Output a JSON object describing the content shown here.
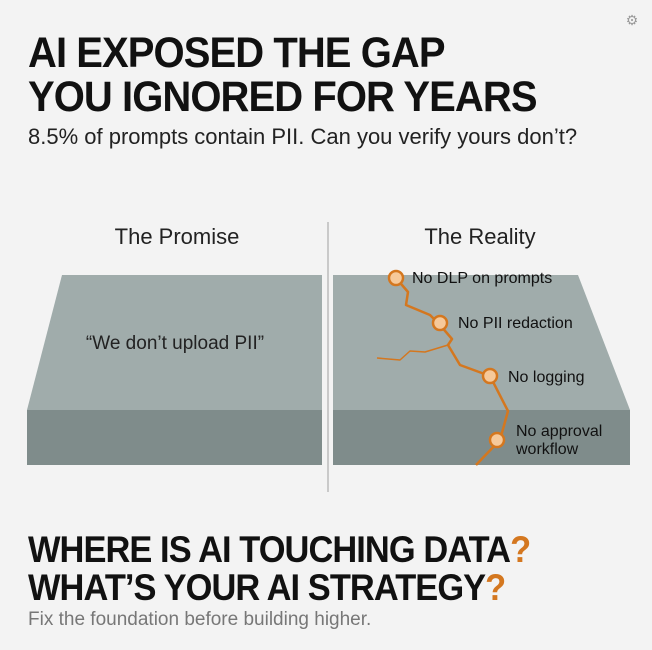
{
  "header": {
    "title_line1": "AI EXPOSED THE GAP",
    "title_line2": "YOU IGNORED FOR YEARS",
    "subtitle": "8.5% of prompts contain PII. Can you verify yours don’t?"
  },
  "promise": {
    "heading": "The Promise",
    "quote": "“We don’t upload PII”"
  },
  "reality": {
    "heading": "The Reality",
    "cracks": [
      "No DLP on prompts",
      "No PII redaction",
      "No logging",
      "No approval",
      "workflow"
    ]
  },
  "footer": {
    "question1": "WHERE IS AI TOUCHING DATA",
    "question2": "WHAT’S YOUR AI STRATEGY",
    "question_mark": "?",
    "tagline": "Fix the foundation before building higher."
  },
  "colors": {
    "accent": "#d4771f",
    "slab_top": "#9fabaa",
    "slab_front": "#7f8c8b",
    "background": "#f3f3f3"
  },
  "icons": {
    "corner": "gear-icon"
  }
}
